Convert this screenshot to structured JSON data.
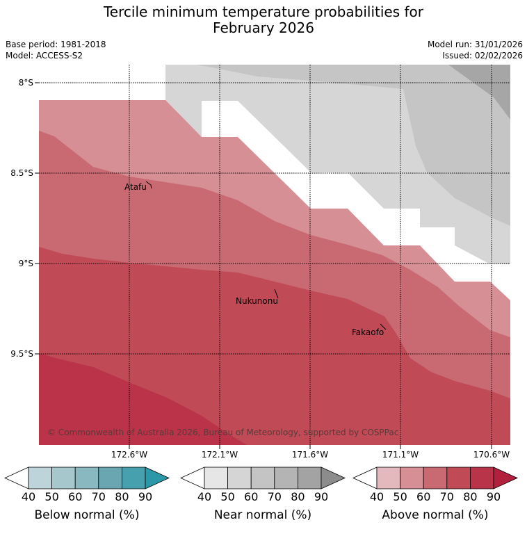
{
  "title_line1": "Tercile minimum temperature probabilities for",
  "title_line2": "February 2026",
  "meta": {
    "base_period": "Base period: 1981-2018",
    "model": "Model: ACCESS-S2",
    "model_run": "Model run: 31/01/2026",
    "issued": "Issued: 02/02/2026"
  },
  "map": {
    "lat_labels": [
      "8°S",
      "8.5°S",
      "9°S",
      "9.5°S"
    ],
    "lon_labels": [
      "172.6°W",
      "172.1°W",
      "171.6°W",
      "171.1°W",
      "170.6°W"
    ],
    "places": [
      "Atafu",
      "Nukunonu",
      "Fakaofo"
    ],
    "copyright": "© Commonwealth of Australia 2026, Bureau of Meteorology, supported by COSPPac"
  },
  "legends": [
    {
      "label": "Below normal (%)",
      "ticks": [
        "40",
        "50",
        "60",
        "70",
        "80",
        "90"
      ],
      "colors": [
        "#bdd5da",
        "#a6c8cd",
        "#89b8c1",
        "#69a6b1",
        "#47a0ae",
        "#2a98a6"
      ]
    },
    {
      "label": "Near normal (%)",
      "ticks": [
        "40",
        "50",
        "60",
        "70",
        "80",
        "90"
      ],
      "colors": [
        "#e6e6e6",
        "#d5d5d5",
        "#c4c4c4",
        "#b4b4b4",
        "#a3a3a3",
        "#8c8c8c"
      ]
    },
    {
      "label": "Above normal (%)",
      "ticks": [
        "40",
        "50",
        "60",
        "70",
        "80",
        "90"
      ],
      "colors": [
        "#e3b9be",
        "#d68f95",
        "#c96a72",
        "#c04a55",
        "#b93349",
        "#b1203d"
      ]
    }
  ]
}
